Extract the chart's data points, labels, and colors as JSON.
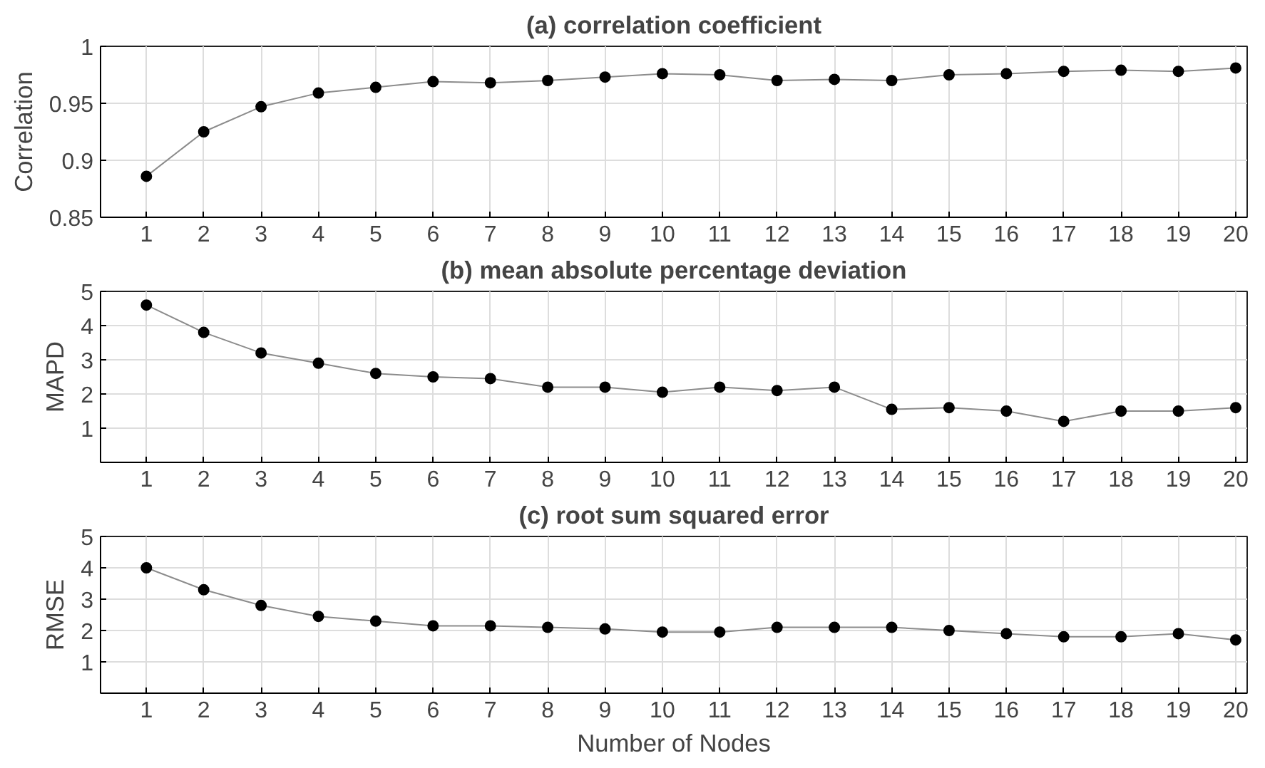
{
  "chart_data": [
    {
      "type": "line",
      "title": "(a) correlation coefficient",
      "ylabel": "Correlation",
      "x": [
        1,
        2,
        3,
        4,
        5,
        6,
        7,
        8,
        9,
        10,
        11,
        12,
        13,
        14,
        15,
        16,
        17,
        18,
        19,
        20
      ],
      "xlim": [
        0.2,
        20.2
      ],
      "xticks": [
        1,
        2,
        3,
        4,
        5,
        6,
        7,
        8,
        9,
        10,
        11,
        12,
        13,
        14,
        15,
        16,
        17,
        18,
        19,
        20
      ],
      "ylim": [
        0.85,
        1
      ],
      "yticks": [
        0.85,
        0.9,
        0.95,
        1
      ],
      "grid": true,
      "marker": "circle",
      "series": [
        {
          "color": "#000000",
          "values": [
            0.886,
            0.925,
            0.947,
            0.959,
            0.964,
            0.969,
            0.968,
            0.97,
            0.973,
            0.976,
            0.975,
            0.97,
            0.971,
            0.97,
            0.975,
            0.976,
            0.978,
            0.979,
            0.978,
            0.981
          ]
        }
      ]
    },
    {
      "type": "line",
      "title": "(b) mean absolute percentage deviation",
      "ylabel": "MAPD",
      "x": [
        1,
        2,
        3,
        4,
        5,
        6,
        7,
        8,
        9,
        10,
        11,
        12,
        13,
        14,
        15,
        16,
        17,
        18,
        19,
        20
      ],
      "xlim": [
        0.2,
        20.2
      ],
      "xticks": [
        1,
        2,
        3,
        4,
        5,
        6,
        7,
        8,
        9,
        10,
        11,
        12,
        13,
        14,
        15,
        16,
        17,
        18,
        19,
        20
      ],
      "ylim": [
        0,
        5
      ],
      "yticks": [
        {
          "value": 0,
          "label": null
        },
        1,
        2,
        3,
        4,
        5
      ],
      "grid": true,
      "marker": "circle",
      "series": [
        {
          "color": "#000000",
          "values": [
            4.6,
            3.8,
            3.2,
            2.9,
            2.6,
            2.5,
            2.45,
            2.2,
            2.2,
            2.05,
            2.2,
            2.1,
            2.2,
            1.55,
            1.6,
            1.5,
            1.2,
            1.5,
            1.5,
            1.6
          ]
        }
      ]
    },
    {
      "type": "line",
      "title": "(c) root sum squared error",
      "ylabel": "RMSE",
      "xlabel": "Number of Nodes",
      "x": [
        1,
        2,
        3,
        4,
        5,
        6,
        7,
        8,
        9,
        10,
        11,
        12,
        13,
        14,
        15,
        16,
        17,
        18,
        19,
        20
      ],
      "xlim": [
        0.2,
        20.2
      ],
      "xticks": [
        1,
        2,
        3,
        4,
        5,
        6,
        7,
        8,
        9,
        10,
        11,
        12,
        13,
        14,
        15,
        16,
        17,
        18,
        19,
        20
      ],
      "ylim": [
        0,
        5
      ],
      "yticks": [
        {
          "value": 0,
          "label": null
        },
        1,
        2,
        3,
        4,
        5
      ],
      "grid": true,
      "marker": "circle",
      "series": [
        {
          "color": "#000000",
          "values": [
            4.0,
            3.3,
            2.8,
            2.45,
            2.3,
            2.15,
            2.15,
            2.1,
            2.05,
            1.95,
            1.95,
            2.1,
            2.1,
            2.1,
            2.0,
            1.9,
            1.8,
            1.8,
            1.9,
            1.7
          ]
        }
      ]
    }
  ]
}
